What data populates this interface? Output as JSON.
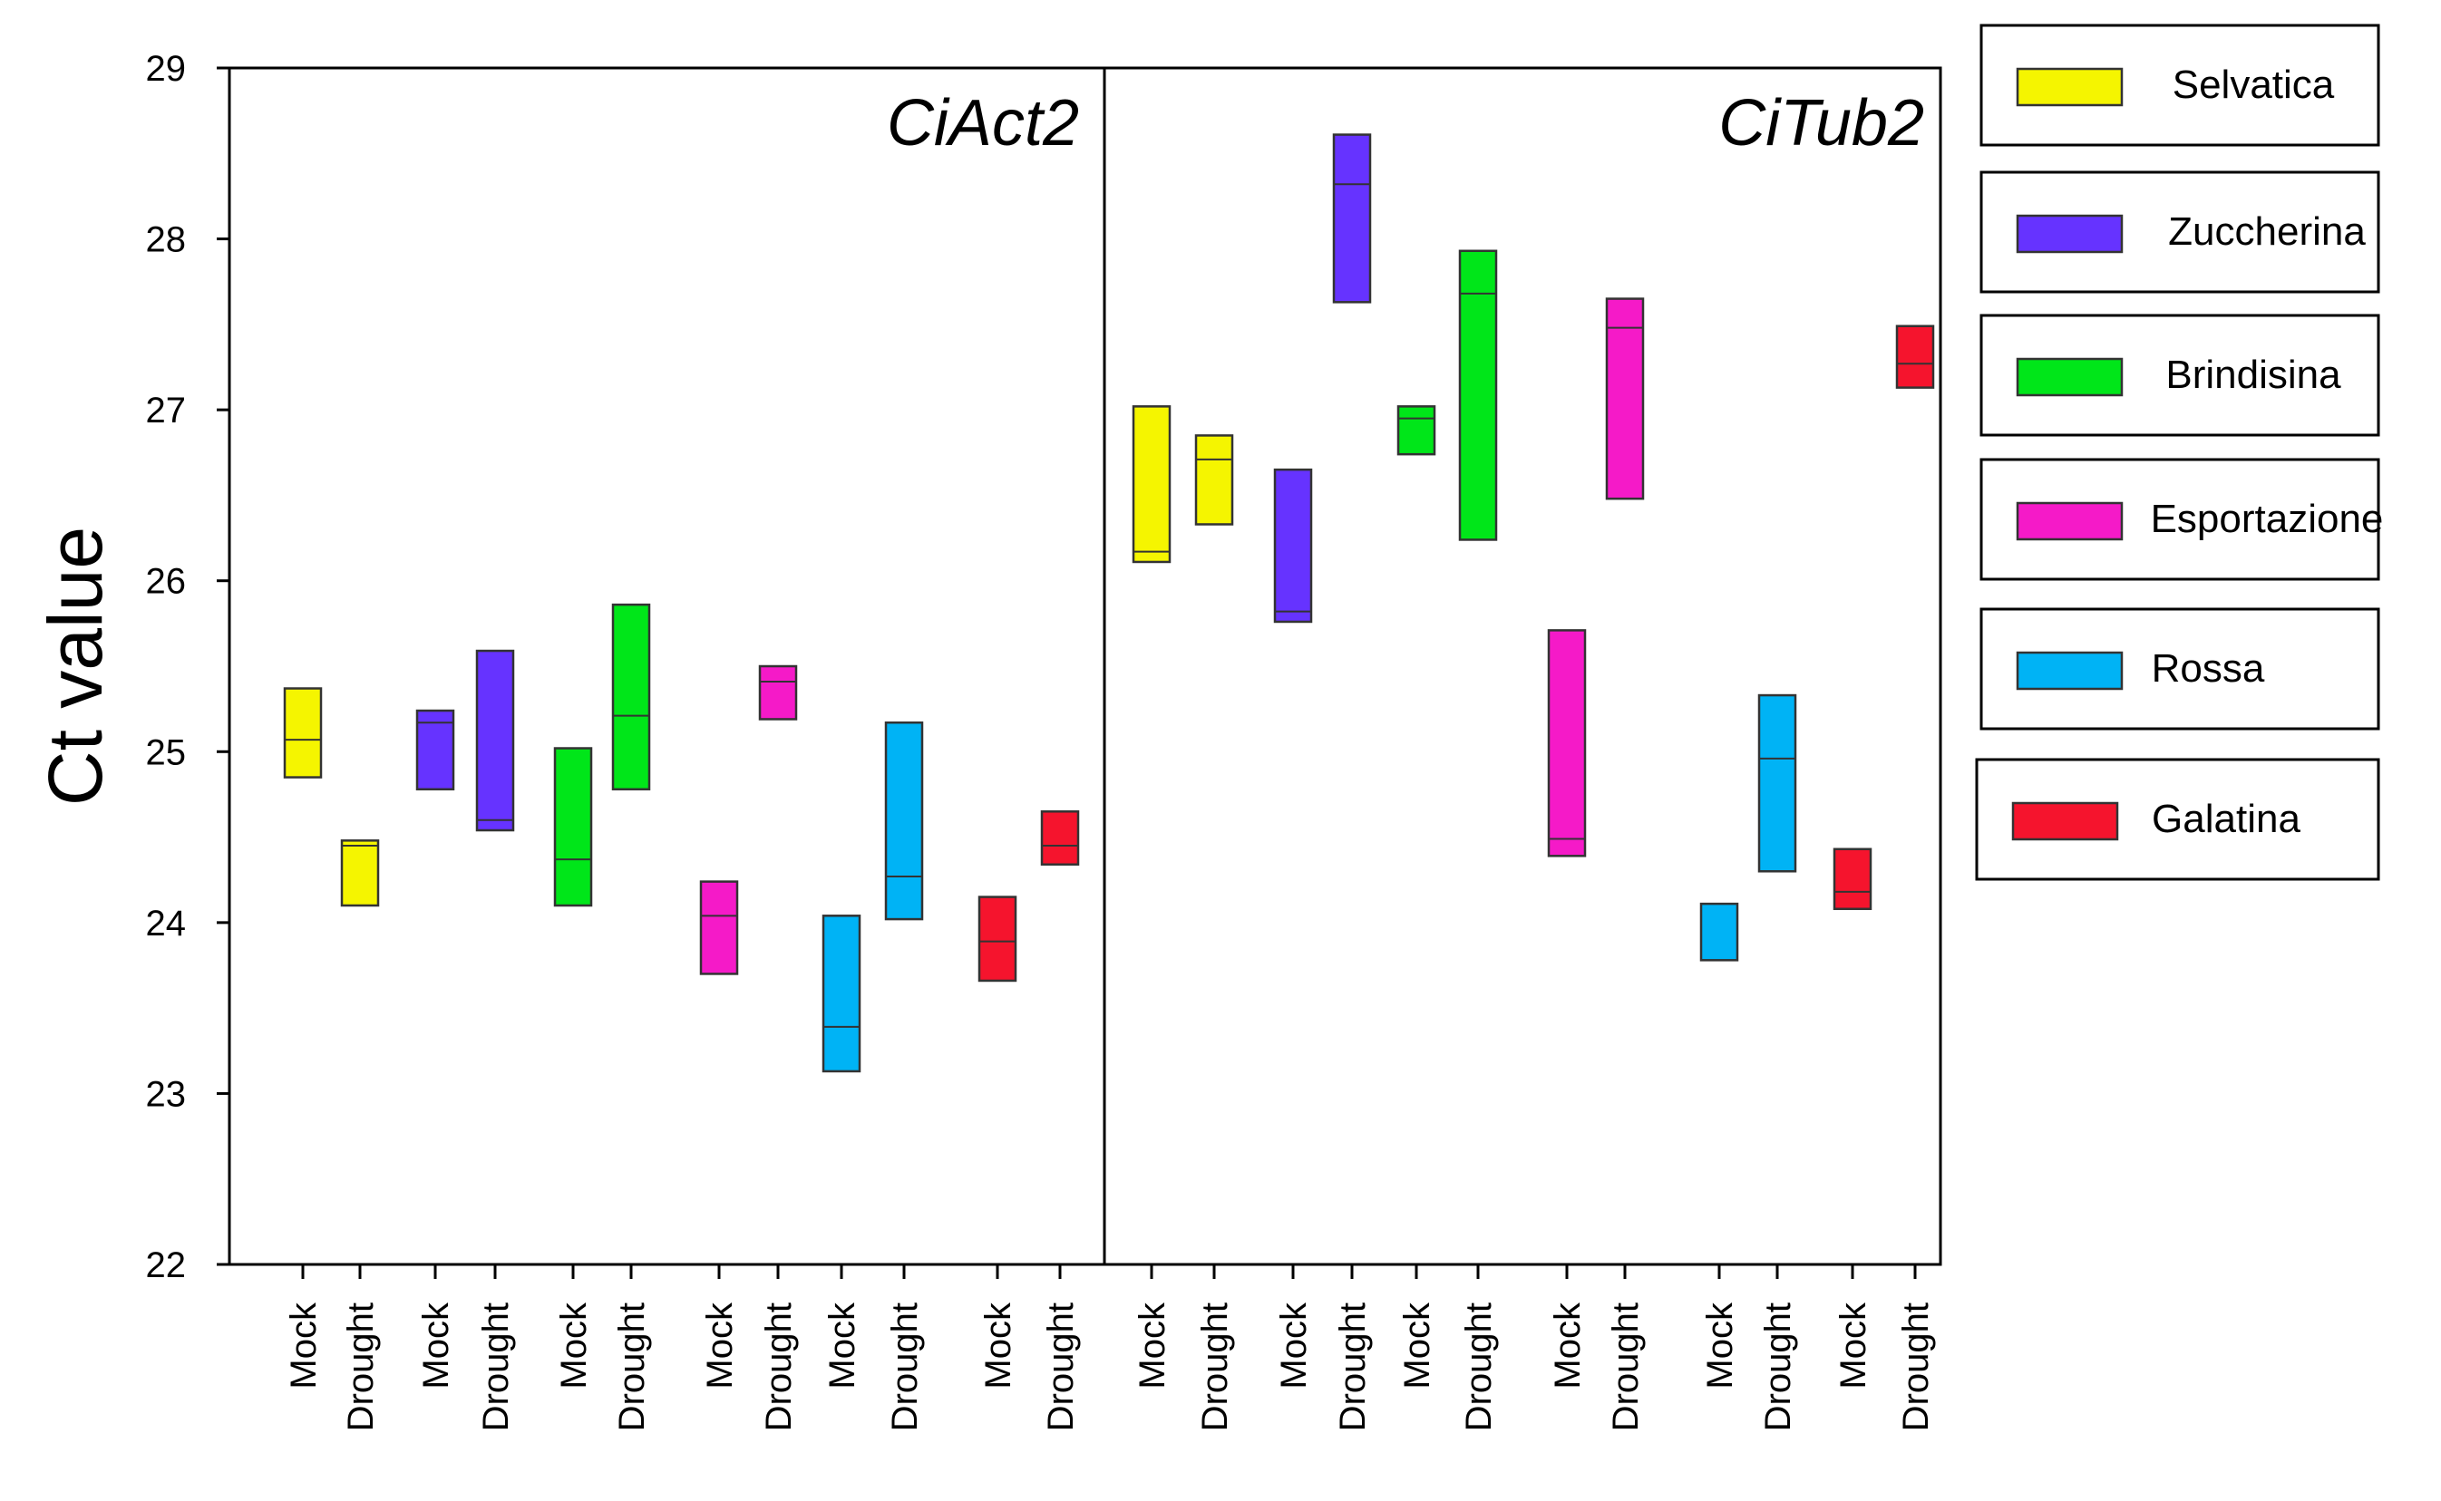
{
  "chart_data": {
    "type": "floating-bar",
    "ylabel": "Ct value",
    "ylim": [
      22,
      29
    ],
    "yticks": [
      22,
      23,
      24,
      25,
      26,
      27,
      28,
      29
    ],
    "tick_labels": [
      "22",
      "23",
      "24",
      "25",
      "26",
      "27",
      "28",
      "29"
    ],
    "categories": [
      "Mock",
      "Drought"
    ],
    "varieties": [
      {
        "name": "Selvatica",
        "color": "#F5F500"
      },
      {
        "name": "Zuccherina",
        "color": "#6633FF"
      },
      {
        "name": "Brindisina",
        "color": "#00E619"
      },
      {
        "name": "Esportazione",
        "color": "#F51AC8"
      },
      {
        "name": "Rossa",
        "color": "#00B3F5"
      },
      {
        "name": "Galatina",
        "color": "#F5142D"
      }
    ],
    "panels": [
      {
        "title": "CiAct2",
        "series": [
          {
            "variety": "Selvatica",
            "condition": "Mock",
            "min": 24.85,
            "max": 25.37,
            "median": 25.07
          },
          {
            "variety": "Selvatica",
            "condition": "Drought",
            "min": 24.1,
            "max": 24.48,
            "median": 24.45
          },
          {
            "variety": "Zuccherina",
            "condition": "Mock",
            "min": 24.78,
            "max": 25.24,
            "median": 25.17
          },
          {
            "variety": "Zuccherina",
            "condition": "Drought",
            "min": 24.54,
            "max": 25.59,
            "median": 24.6
          },
          {
            "variety": "Brindisina",
            "condition": "Mock",
            "min": 24.1,
            "max": 25.02,
            "median": 24.37
          },
          {
            "variety": "Brindisina",
            "condition": "Drought",
            "min": 24.78,
            "max": 25.86,
            "median": 25.21
          },
          {
            "variety": "Esportazione",
            "condition": "Mock",
            "min": 23.7,
            "max": 24.24,
            "median": 24.04
          },
          {
            "variety": "Esportazione",
            "condition": "Drought",
            "min": 25.19,
            "max": 25.5,
            "median": 25.41
          },
          {
            "variety": "Rossa",
            "condition": "Mock",
            "min": 23.13,
            "max": 24.04,
            "median": 23.39
          },
          {
            "variety": "Rossa",
            "condition": "Drought",
            "min": 24.02,
            "max": 25.17,
            "median": 24.27
          },
          {
            "variety": "Galatina",
            "condition": "Mock",
            "min": 23.66,
            "max": 24.15,
            "median": 23.89
          },
          {
            "variety": "Galatina",
            "condition": "Drought",
            "min": 24.34,
            "max": 24.65,
            "median": 24.45
          }
        ]
      },
      {
        "title": "CiTub2",
        "series": [
          {
            "variety": "Selvatica",
            "condition": "Mock",
            "min": 26.11,
            "max": 27.02,
            "median": 26.17
          },
          {
            "variety": "Selvatica",
            "condition": "Drought",
            "min": 26.33,
            "max": 26.85,
            "median": 26.71
          },
          {
            "variety": "Zuccherina",
            "condition": "Mock",
            "min": 25.76,
            "max": 26.65,
            "median": 25.82
          },
          {
            "variety": "Zuccherina",
            "condition": "Drought",
            "min": 27.63,
            "max": 28.61,
            "median": 28.32
          },
          {
            "variety": "Brindisina",
            "condition": "Mock",
            "min": 26.74,
            "max": 27.02,
            "median": 26.95
          },
          {
            "variety": "Brindisina",
            "condition": "Drought",
            "min": 26.24,
            "max": 27.93,
            "median": 27.68
          },
          {
            "variety": "Esportazione",
            "condition": "Mock",
            "min": 24.39,
            "max": 25.71,
            "median": 24.49
          },
          {
            "variety": "Esportazione",
            "condition": "Drought",
            "min": 26.48,
            "max": 27.65,
            "median": 27.48
          },
          {
            "variety": "Rossa",
            "condition": "Mock",
            "min": 23.78,
            "max": 24.11,
            "median": 23.78
          },
          {
            "variety": "Rossa",
            "condition": "Drought",
            "min": 24.3,
            "max": 25.33,
            "median": 24.96
          },
          {
            "variety": "Galatina",
            "condition": "Mock",
            "min": 24.08,
            "max": 24.43,
            "median": 24.18
          },
          {
            "variety": "Galatina",
            "condition": "Drought",
            "min": 27.13,
            "max": 27.49,
            "median": 27.27
          }
        ]
      }
    ],
    "legend": [
      "Selvatica",
      "Zuccherina",
      "Brindisina",
      "Esportazione",
      "Rossa",
      "Galatina"
    ]
  }
}
